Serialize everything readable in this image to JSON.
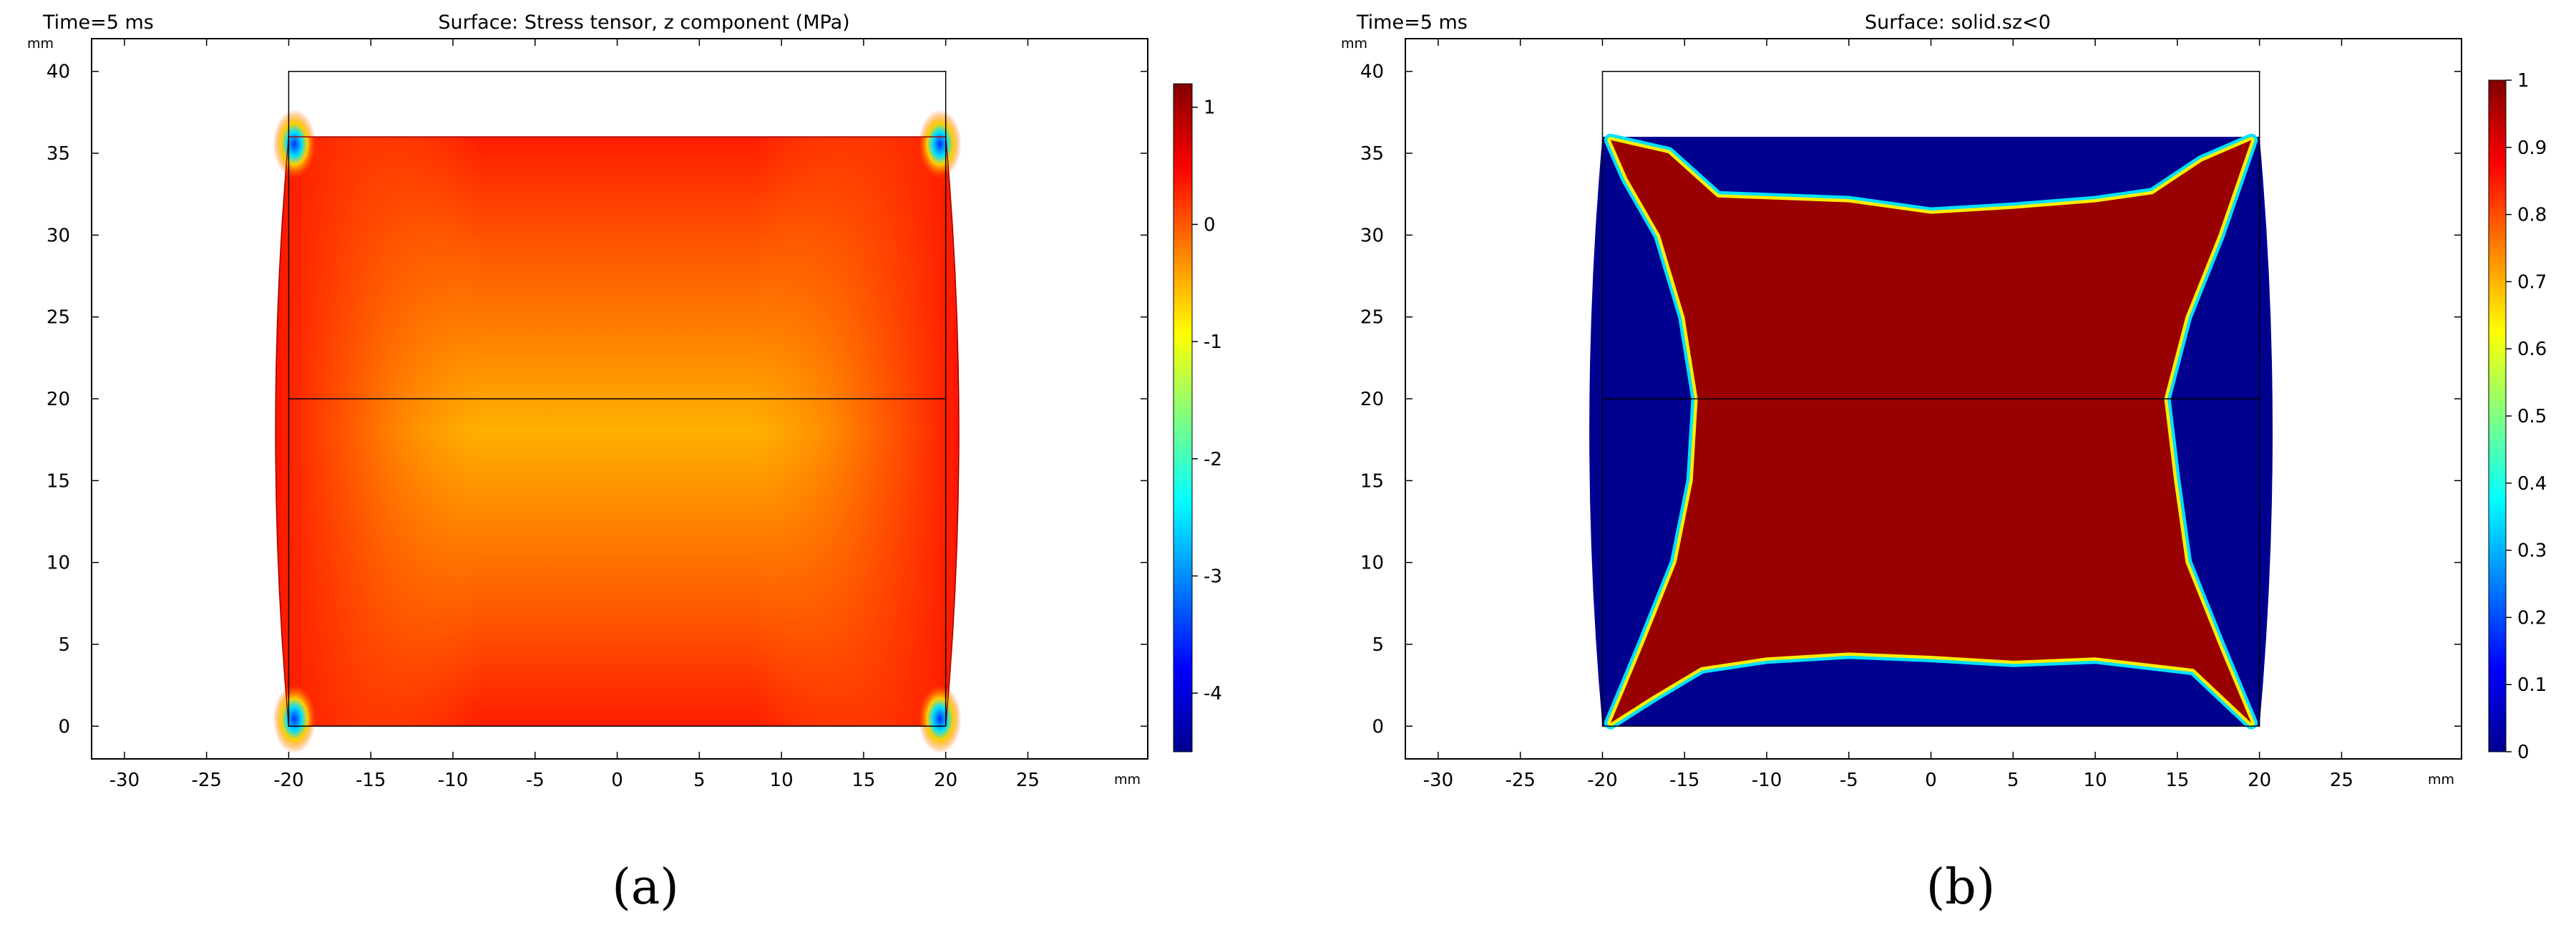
{
  "chart_data": [
    {
      "id": "a",
      "type": "heatmap",
      "time_label": "Time=5 ms",
      "title": "Surface: Stress tensor, z component (MPa)",
      "xlabel": "mm",
      "ylabel": "mm",
      "xlim": [
        -32,
        32.3
      ],
      "ylim": [
        -2,
        42
      ],
      "x_ticks": [
        "-30",
        "-25",
        "-20",
        "-15",
        "-10",
        "-5",
        "0",
        "5",
        "10",
        "15",
        "20",
        "25"
      ],
      "x_tick_values": [
        -30,
        -25,
        -20,
        -15,
        -10,
        -5,
        0,
        5,
        10,
        15,
        20,
        25
      ],
      "y_ticks": [
        "0",
        "5",
        "10",
        "15",
        "20",
        "25",
        "30",
        "35",
        "40"
      ],
      "y_tick_values": [
        0,
        5,
        10,
        15,
        20,
        25,
        30,
        35,
        40
      ],
      "grid": false,
      "colorbar": {
        "range": [
          -4.5,
          1.2
        ],
        "ticks": [
          "1",
          "0",
          "-1",
          "-2",
          "-3",
          "-4"
        ],
        "tick_values": [
          1,
          0,
          -1,
          -2,
          -3,
          -4
        ],
        "colormap": "rainbow",
        "placement": "right"
      },
      "geometry": {
        "undeformed_outline": {
          "x": [
            -20,
            20
          ],
          "y": [
            0,
            40
          ]
        },
        "deformed_top_y": 36,
        "interface_line_y": 20,
        "max_bulge_x": 20.8
      },
      "field_summary": {
        "center_value": -0.4,
        "top_bottom_edge_value": 0.9,
        "side_edge_value": 0.9,
        "corner_value": -4.4
      },
      "sublabel": "(a)"
    },
    {
      "id": "b",
      "type": "heatmap",
      "time_label": "Time=5 ms",
      "title": "Surface: solid.sz<0",
      "xlabel": "mm",
      "ylabel": "mm",
      "xlim": [
        -32,
        32.3
      ],
      "ylim": [
        -2,
        42
      ],
      "x_ticks": [
        "-30",
        "-25",
        "-20",
        "-15",
        "-10",
        "-5",
        "0",
        "5",
        "10",
        "15",
        "20",
        "25"
      ],
      "x_tick_values": [
        -30,
        -25,
        -20,
        -15,
        -10,
        -5,
        0,
        5,
        10,
        15,
        20,
        25
      ],
      "y_ticks": [
        "0",
        "5",
        "10",
        "15",
        "20",
        "25",
        "30",
        "35",
        "40"
      ],
      "y_tick_values": [
        0,
        5,
        10,
        15,
        20,
        25,
        30,
        35,
        40
      ],
      "grid": false,
      "colorbar": {
        "range": [
          0,
          1
        ],
        "ticks": [
          "1",
          "0.9",
          "0.8",
          "0.7",
          "0.6",
          "0.5",
          "0.4",
          "0.3",
          "0.2",
          "0.1",
          "0"
        ],
        "tick_values": [
          1,
          0.9,
          0.8,
          0.7,
          0.6,
          0.5,
          0.4,
          0.3,
          0.2,
          0.1,
          0
        ],
        "colormap": "rainbow",
        "placement": "right"
      },
      "geometry": {
        "undeformed_outline": {
          "x": [
            -20,
            20
          ],
          "y": [
            0,
            40
          ]
        },
        "deformed_top_y": 36,
        "interface_line_y": 20,
        "max_bulge_x": 20.8
      },
      "field_summary": {
        "inner_region_value": 1,
        "outer_band_value": 0
      },
      "sublabel": "(b)"
    }
  ]
}
